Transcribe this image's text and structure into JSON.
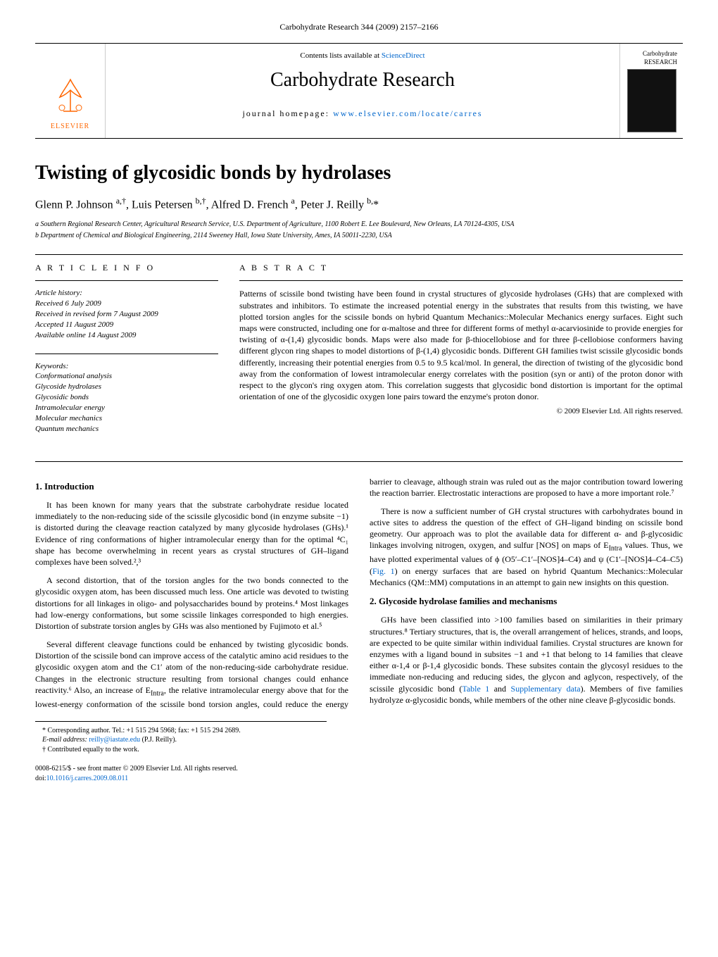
{
  "running_header": "Carbohydrate Research 344 (2009) 2157–2166",
  "masthead": {
    "publisher": "ELSEVIER",
    "contents_prefix": "Contents lists available at ",
    "contents_link": "ScienceDirect",
    "journal": "Carbohydrate Research",
    "homepage_prefix": "journal homepage: ",
    "homepage_link": "www.elsevier.com/locate/carres",
    "cover_label_1": "Carbohydrate",
    "cover_label_2": "RESEARCH"
  },
  "title": "Twisting of glycosidic bonds by hydrolases",
  "authors_html": "Glenn P. Johnson <sup>a,†</sup>, Luis Petersen <sup>b,†</sup>, Alfred D. French <sup>a</sup>, Peter J. Reilly <sup>b,</sup>*",
  "affiliations": [
    "a Southern Regional Research Center, Agricultural Research Service, U.S. Department of Agriculture, 1100 Robert E. Lee Boulevard, New Orleans, LA 70124-4305, USA",
    "b Department of Chemical and Biological Engineering, 2114 Sweeney Hall, Iowa State University, Ames, IA 50011-2230, USA"
  ],
  "info": {
    "header": "A R T I C L E   I N F O",
    "history_label": "Article history:",
    "history": [
      "Received 6 July 2009",
      "Received in revised form 7 August 2009",
      "Accepted 11 August 2009",
      "Available online 14 August 2009"
    ],
    "keywords_label": "Keywords:",
    "keywords": [
      "Conformational analysis",
      "Glycoside hydrolases",
      "Glycosidic bonds",
      "Intramolecular energy",
      "Molecular mechanics",
      "Quantum mechanics"
    ]
  },
  "abstract": {
    "header": "A B S T R A C T",
    "text": "Patterns of scissile bond twisting have been found in crystal structures of glycoside hydrolases (GHs) that are complexed with substrates and inhibitors. To estimate the increased potential energy in the substrates that results from this twisting, we have plotted torsion angles for the scissile bonds on hybrid Quantum Mechanics::Molecular Mechanics energy surfaces. Eight such maps were constructed, including one for α-maltose and three for different forms of methyl α-acarviosinide to provide energies for twisting of α-(1,4) glycosidic bonds. Maps were also made for β-thiocellobiose and for three β-cellobiose conformers having different glycon ring shapes to model distortions of β-(1,4) glycosidic bonds. Different GH families twist scissile glycosidic bonds differently, increasing their potential energies from 0.5 to 9.5 kcal/mol. In general, the direction of twisting of the glycosidic bond away from the conformation of lowest intramolecular energy correlates with the position (syn or anti) of the proton donor with respect to the glycon's ring oxygen atom. This correlation suggests that glycosidic bond distortion is important for the optimal orientation of one of the glycosidic oxygen lone pairs toward the enzyme's proton donor.",
    "copyright": "© 2009 Elsevier Ltd. All rights reserved."
  },
  "sections": {
    "s1_title": "1. Introduction",
    "s1_p1": "It has been known for many years that the substrate carbohydrate residue located immediately to the non-reducing side of the scissile glycosidic bond (in enzyme subsite −1) is distorted during the cleavage reaction catalyzed by many glycoside hydrolases (GHs).¹ Evidence of ring conformations of higher intramolecular energy than for the optimal ⁴C₁ shape has become overwhelming in recent years as crystal structures of GH–ligand complexes have been solved.²,³",
    "s1_p2": "A second distortion, that of the torsion angles for the two bonds connected to the glycosidic oxygen atom, has been discussed much less. One article was devoted to twisting distortions for all linkages in oligo- and polysaccharides bound by proteins.⁴ Most linkages had low-energy conformations, but some scissile linkages corresponded to high energies. Distortion of substrate torsion angles by GHs was also mentioned by Fujimoto et al.⁵",
    "s1_p3_a": "Several different cleavage functions could be enhanced by twisting glycosidic bonds. Distortion of the scissile bond can improve access of the catalytic amino acid residues to the glycosidic oxygen atom and the C1′ atom of the non-reducing-side carbohydrate residue. Changes in the electronic structure resulting from torsional changes could enhance reactivity.⁶ Also, an increase of E",
    "s1_p3_b": ", the relative intramolecular energy above that for the lowest-energy conformation of the scissile bond torsion angles, could reduce the ",
    "s1_p3_c": "energy barrier to cleavage, although strain was ruled out as the major contribution toward lowering the reaction barrier. Electrostatic interactions are proposed to have a more important role.⁷",
    "s1_p4_a": "There is now a sufficient number of GH crystal structures with carbohydrates bound in active sites to address the question of the effect of GH–ligand binding on scissile bond geometry. Our approach was to plot the available data for different α- and β-glycosidic linkages involving nitrogen, oxygen, and sulfur [NOS] on maps of E",
    "s1_p4_b": " values. Thus, we have plotted experimental values of ϕ (O5′–C1′–[NOS]4–C4) and ψ (C1′–[NOS]4–C4–C5) (",
    "s1_p4_fig": "Fig. 1",
    "s1_p4_c": ") on energy surfaces that are based on hybrid Quantum Mechanics::Molecular Mechanics (QM::MM) computations in an attempt to gain new insights on this question.",
    "s2_title": "2. Glycoside hydrolase families and mechanisms",
    "s2_p1_a": "GHs have been classified into >100 families based on similarities in their primary structures.⁸ Tertiary structures, that is, the overall arrangement of helices, strands, and loops, are expected to be quite similar within individual families. Crystal structures are known for enzymes with a ligand bound in subsites −1 and +1 that belong to 14 families that cleave either α-1,4 or β-1,4 glycosidic bonds. These subsites contain the glycosyl residues to the immediate non-reducing and reducing sides, the glycon and aglycon, respectively, of the scissile glycosidic bond (",
    "s2_p1_tab": "Table 1",
    "s2_p1_b": " and ",
    "s2_p1_supp": "Supplementary data",
    "s2_p1_c": "). Members of five families hydrolyze α-glycosidic bonds, while members of the other nine cleave β-glycosidic bonds."
  },
  "footnotes": {
    "corr": "* Corresponding author. Tel.: +1 515 294 5968; fax: +1 515 294 2689.",
    "email_label": "E-mail address: ",
    "email": "reilly@iastate.edu",
    "email_suffix": " (P.J. Reilly).",
    "contrib": "† Contributed equally to the work."
  },
  "bottom": {
    "front_matter": "0008-6215/$ - see front matter © 2009 Elsevier Ltd. All rights reserved.",
    "doi_label": "doi:",
    "doi": "10.1016/j.carres.2009.08.011"
  },
  "colors": {
    "link": "#0066cc",
    "publisher": "#ff6600"
  }
}
